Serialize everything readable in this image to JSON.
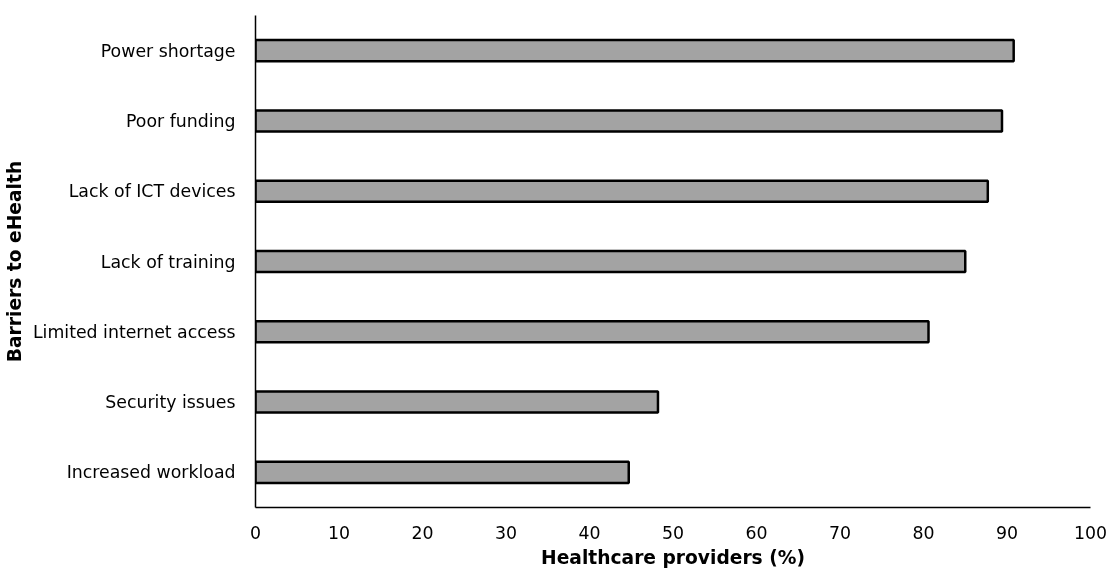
{
  "chart_data": {
    "type": "bar",
    "orientation": "horizontal",
    "xlabel": "Healthcare providers (%)",
    "ylabel": "Barriers to eHealth",
    "categories": [
      "Power shortage",
      "Poor funding",
      "Lack of ICT devices",
      "Lack of training",
      "Limited internet access",
      "Security issues",
      "Increased workload"
    ],
    "values": [
      90.8,
      89.4,
      87.7,
      85.0,
      80.6,
      48.2,
      44.7
    ],
    "color": "#a3a3a3",
    "xlim": [
      0,
      100
    ],
    "xticks": [
      0,
      10,
      20,
      30,
      40,
      50,
      60,
      70,
      80,
      90,
      100
    ],
    "grid": false
  }
}
